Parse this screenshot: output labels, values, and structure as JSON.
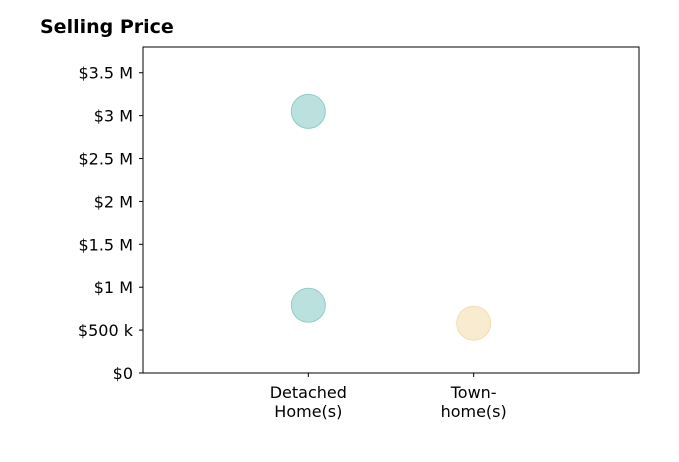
{
  "chart_data": {
    "type": "scatter",
    "title": "Selling Price",
    "xlabel": "",
    "ylabel": "",
    "categories": [
      [
        "Detached",
        "Home(s)"
      ],
      [
        "Town-",
        "home(s)"
      ]
    ],
    "xlim": [
      -1,
      2
    ],
    "ylim": [
      0,
      3800000
    ],
    "yticks": [
      {
        "value": 0,
        "label": "$0"
      },
      {
        "value": 500000,
        "label": "$500 k"
      },
      {
        "value": 1000000,
        "label": "$1 M"
      },
      {
        "value": 1500000,
        "label": "$1.5 M"
      },
      {
        "value": 2000000,
        "label": "$2 M"
      },
      {
        "value": 2500000,
        "label": "$2.5 M"
      },
      {
        "value": 3000000,
        "label": "$3 M"
      },
      {
        "value": 3500000,
        "label": "$3.5 M"
      }
    ],
    "points": [
      {
        "category": 0,
        "y": 3050000,
        "color": "#8ecdc8"
      },
      {
        "category": 0,
        "y": 790000,
        "color": "#8ecdc8"
      },
      {
        "category": 1,
        "y": 580000,
        "color": "#f5deb0"
      }
    ],
    "grid": false,
    "legend": "none"
  }
}
